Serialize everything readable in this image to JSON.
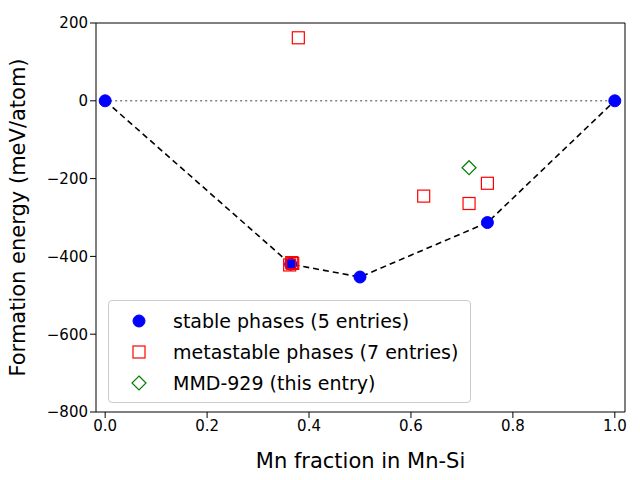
{
  "chart_data": {
    "type": "scatter",
    "x_label": "Mn fraction in Mn-Si",
    "y_label": "Formation energy (meV/atom)",
    "xlim": [
      -0.018,
      1.02
    ],
    "ylim": [
      -800,
      200
    ],
    "xticks": [
      {
        "value": 0,
        "label": "0.0"
      },
      {
        "value": 0.2,
        "label": "0.2"
      },
      {
        "value": 0.4,
        "label": "0.4"
      },
      {
        "value": 0.6,
        "label": "0.6"
      },
      {
        "value": 0.8,
        "label": "0.8"
      },
      {
        "value": 1,
        "label": "1.0"
      }
    ],
    "yticks": [
      {
        "value": -800,
        "label": "−800"
      },
      {
        "value": -600,
        "label": "−600"
      },
      {
        "value": -400,
        "label": "−400"
      },
      {
        "value": -200,
        "label": "−200"
      },
      0,
      200
    ],
    "legend": "lower left",
    "series": [
      {
        "type": "line",
        "color": "#808080",
        "line_style": "dotted",
        "marker": "none",
        "x": [
          0,
          1
        ],
        "values": [
          0,
          0
        ]
      },
      {
        "type": "line",
        "color": "#000000",
        "line_style": "dashed",
        "marker": "none",
        "x": [
          0,
          0.364,
          0.5,
          0.75,
          1
        ],
        "values": [
          0,
          -420,
          -453,
          -313,
          0
        ]
      },
      {
        "name": "stable phases (5 entries)",
        "type": "scatter",
        "color": "#0000ff",
        "marker": "circle",
        "x": [
          0,
          0.364,
          0.5,
          0.75,
          1
        ],
        "values": [
          0,
          -420,
          -453,
          -313,
          0
        ]
      },
      {
        "name": "metastable phases (7 entries)",
        "type": "scatter",
        "color": "#ff0000",
        "marker": "square",
        "x": [
          0.379,
          0.362,
          0.366,
          0.368,
          0.625,
          0.714,
          0.75
        ],
        "values": [
          162,
          -422,
          -416,
          -418,
          -245,
          -264,
          -212
        ]
      },
      {
        "name": "MMD-929 (this entry)",
        "type": "scatter",
        "color": "#008000",
        "marker": "diamond",
        "x": [
          0.714
        ],
        "values": [
          -172
        ]
      }
    ]
  }
}
